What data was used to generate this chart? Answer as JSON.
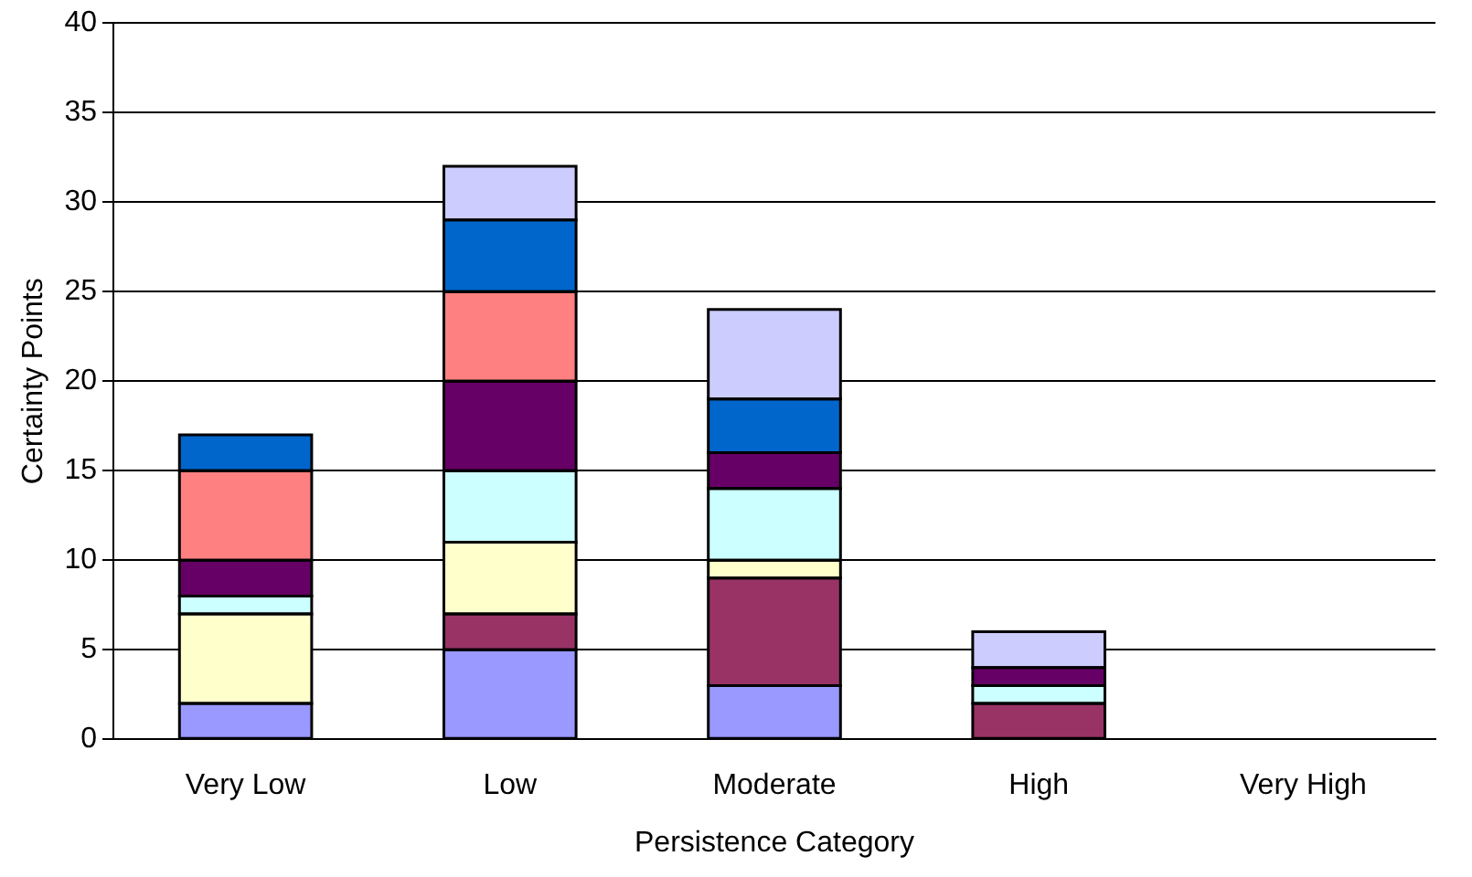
{
  "chart_data": {
    "type": "bar",
    "stacked": true,
    "xlabel": "Persistence Category",
    "ylabel": "Certainty Points",
    "categories": [
      "Very Low",
      "Low",
      "Moderate",
      "High",
      "Very High"
    ],
    "series": [
      {
        "color": "#9999ff",
        "values": [
          2,
          5,
          3,
          0,
          0
        ]
      },
      {
        "color": "#993366",
        "values": [
          0,
          2,
          6,
          2,
          0
        ]
      },
      {
        "color": "#ffffcc",
        "values": [
          5,
          4,
          1,
          0,
          0
        ]
      },
      {
        "color": "#ccffff",
        "values": [
          1,
          4,
          4,
          1,
          0
        ]
      },
      {
        "color": "#660066",
        "values": [
          2,
          5,
          2,
          1,
          0
        ]
      },
      {
        "color": "#ff8080",
        "values": [
          5,
          5,
          0,
          0,
          0
        ]
      },
      {
        "color": "#0066cc",
        "values": [
          2,
          4,
          3,
          0,
          0
        ]
      },
      {
        "color": "#ccccff",
        "values": [
          0,
          3,
          5,
          2,
          0
        ]
      }
    ],
    "ylim": [
      0,
      40
    ],
    "yticks": [
      0,
      5,
      10,
      15,
      20,
      25,
      30,
      35,
      40
    ],
    "grid": "y",
    "legend": false
  }
}
